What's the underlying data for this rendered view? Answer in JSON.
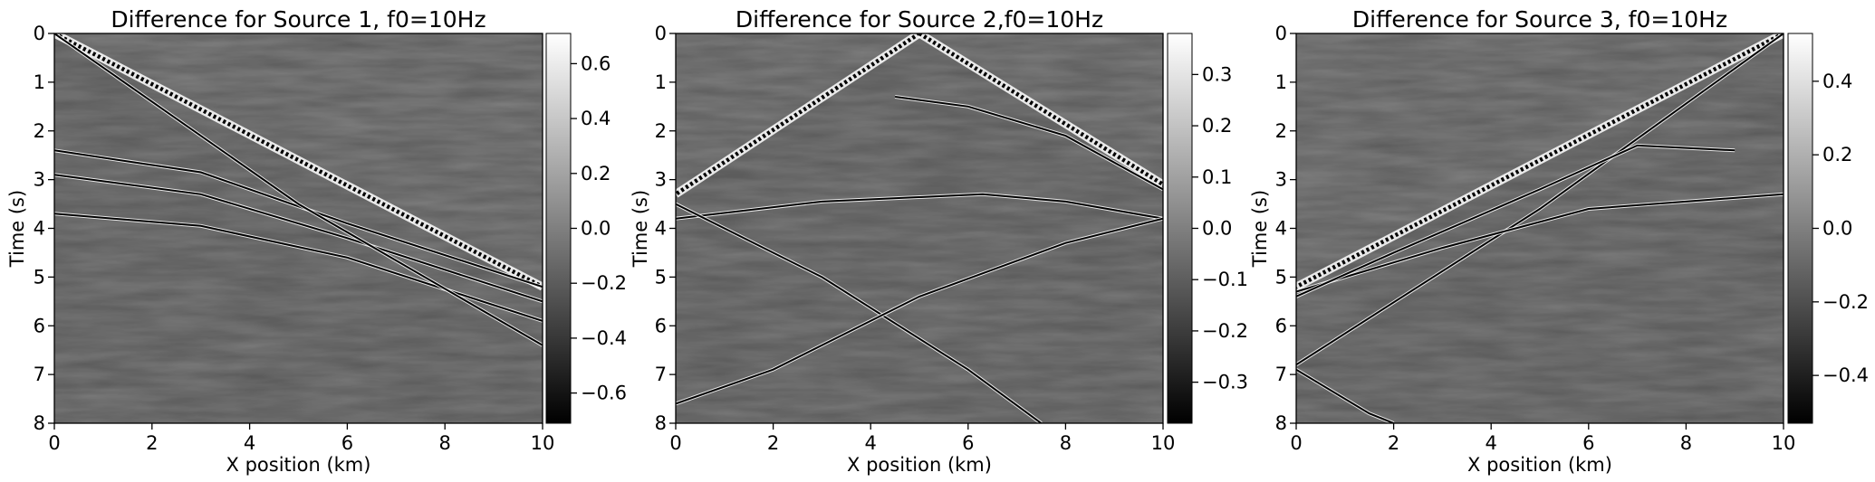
{
  "chart_data": [
    {
      "type": "heatmap",
      "title": "Difference for Source 1, f0=10Hz",
      "xlabel": "X position (km)",
      "ylabel": "Time (s)",
      "xlim": [
        0,
        10
      ],
      "ylim": [
        8,
        0
      ],
      "x_ticks": [
        0,
        2,
        4,
        6,
        8,
        10
      ],
      "y_ticks": [
        0,
        1,
        2,
        3,
        4,
        5,
        6,
        7,
        8
      ],
      "colormap": "gray",
      "colorbar": {
        "range": [
          -0.71,
          0.71
        ],
        "ticks": [
          -0.6,
          -0.4,
          -0.2,
          0.0,
          0.2,
          0.4,
          0.6
        ],
        "labels": [
          "−0.6",
          "−0.4",
          "−0.2",
          "0.0",
          "0.2",
          "0.4",
          "0.6"
        ]
      },
      "source_x_km": 0,
      "events": [
        {
          "kind": "direct_wave",
          "points": [
            [
              0,
              0
            ],
            [
              10,
              5.2
            ]
          ]
        },
        {
          "kind": "reflection",
          "points": [
            [
              0,
              2.4
            ],
            [
              3,
              2.85
            ],
            [
              6,
              3.9
            ],
            [
              10,
              5.2
            ]
          ]
        },
        {
          "kind": "reflection",
          "points": [
            [
              0,
              2.9
            ],
            [
              3,
              3.3
            ],
            [
              6,
              4.2
            ],
            [
              10,
              5.5
            ]
          ]
        },
        {
          "kind": "reflection",
          "points": [
            [
              0,
              3.7
            ],
            [
              3,
              3.95
            ],
            [
              6,
              4.6
            ],
            [
              10,
              5.9
            ]
          ]
        },
        {
          "kind": "refraction",
          "points": [
            [
              0,
              0
            ],
            [
              5,
              3.5
            ],
            [
              10,
              6.4
            ]
          ]
        }
      ]
    },
    {
      "type": "heatmap",
      "title": "Difference for Source 2,f0=10Hz",
      "xlabel": "X position (km)",
      "ylabel": "Time (s)",
      "xlim": [
        0,
        10
      ],
      "ylim": [
        8,
        0
      ],
      "x_ticks": [
        0,
        2,
        4,
        6,
        8,
        10
      ],
      "y_ticks": [
        0,
        1,
        2,
        3,
        4,
        5,
        6,
        7,
        8
      ],
      "colormap": "gray",
      "colorbar": {
        "range": [
          -0.38,
          0.38
        ],
        "ticks": [
          -0.3,
          -0.2,
          -0.1,
          0.0,
          0.1,
          0.2,
          0.3
        ],
        "labels": [
          "−0.3",
          "−0.2",
          "−0.1",
          "0.0",
          "0.1",
          "0.2",
          "0.3"
        ]
      },
      "source_x_km": 5,
      "events": [
        {
          "kind": "direct_wave",
          "points": [
            [
              5,
              0
            ],
            [
              0,
              3.3
            ]
          ]
        },
        {
          "kind": "direct_wave",
          "points": [
            [
              5,
              0
            ],
            [
              10,
              3.1
            ]
          ]
        },
        {
          "kind": "reflection",
          "points": [
            [
              0,
              3.8
            ],
            [
              3,
              3.45
            ],
            [
              6.3,
              3.3
            ],
            [
              8,
              3.45
            ],
            [
              10,
              3.8
            ]
          ]
        },
        {
          "kind": "crossing",
          "points": [
            [
              0,
              3.5
            ],
            [
              3,
              5.0
            ],
            [
              6,
              6.9
            ],
            [
              7.5,
              8.0
            ]
          ]
        },
        {
          "kind": "crossing",
          "points": [
            [
              10,
              3.8
            ],
            [
              8,
              4.3
            ],
            [
              5,
              5.4
            ],
            [
              2,
              6.9
            ],
            [
              0,
              7.6
            ]
          ]
        },
        {
          "kind": "reflection",
          "points": [
            [
              4.5,
              1.3
            ],
            [
              6,
              1.5
            ],
            [
              8,
              2.1
            ],
            [
              10,
              3.2
            ]
          ]
        }
      ]
    },
    {
      "type": "heatmap",
      "title": "Difference for Source 3, f0=10Hz",
      "xlabel": "X position (km)",
      "ylabel": "Time (s)",
      "xlim": [
        0,
        10
      ],
      "ylim": [
        8,
        0
      ],
      "x_ticks": [
        0,
        2,
        4,
        6,
        8,
        10
      ],
      "y_ticks": [
        0,
        1,
        2,
        3,
        4,
        5,
        6,
        7,
        8
      ],
      "colormap": "gray",
      "colorbar": {
        "range": [
          -0.53,
          0.53
        ],
        "ticks": [
          -0.4,
          -0.2,
          0.0,
          0.2,
          0.4
        ],
        "labels": [
          "−0.4",
          "−0.2",
          "0.0",
          "0.2",
          "0.4"
        ]
      },
      "source_x_km": 10,
      "events": [
        {
          "kind": "direct_wave",
          "points": [
            [
              10,
              0
            ],
            [
              0,
              5.2
            ]
          ]
        },
        {
          "kind": "refraction",
          "points": [
            [
              10,
              0
            ],
            [
              5,
              3.6
            ],
            [
              0,
              6.8
            ]
          ]
        },
        {
          "kind": "reflection",
          "points": [
            [
              10,
              3.3
            ],
            [
              6,
              3.6
            ],
            [
              3,
              4.4
            ],
            [
              0,
              5.3
            ]
          ]
        },
        {
          "kind": "reflection",
          "points": [
            [
              9,
              2.4
            ],
            [
              7,
              2.3
            ],
            [
              5,
              3.2
            ],
            [
              2,
              4.5
            ],
            [
              0,
              5.4
            ]
          ]
        },
        {
          "kind": "reflection",
          "points": [
            [
              0,
              6.9
            ],
            [
              1.5,
              7.8
            ],
            [
              2,
              8.0
            ]
          ]
        }
      ]
    }
  ]
}
